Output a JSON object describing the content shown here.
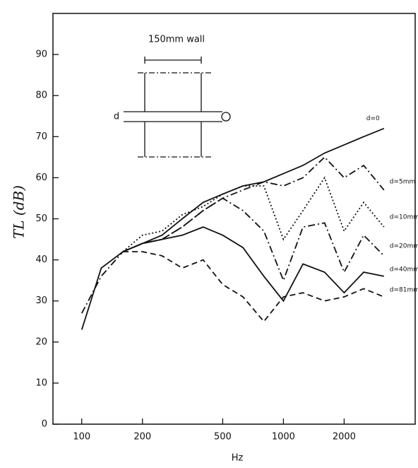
{
  "chart_data": {
    "type": "line",
    "x_label": "Hz",
    "y_label": "TL (dB)",
    "annotations": [
      "150mm wall",
      "d"
    ],
    "x": [
      100,
      125,
      160,
      200,
      250,
      315,
      400,
      500,
      630,
      800,
      1000,
      1250,
      1600,
      2000,
      2500,
      3150
    ],
    "xlim": [
      72,
      4500
    ],
    "xscale": "log",
    "xticks": [
      100,
      200,
      500,
      1000,
      2000
    ],
    "ylim": [
      0,
      100
    ],
    "yticks": [
      0,
      10,
      20,
      30,
      40,
      50,
      60,
      70,
      80,
      90
    ],
    "grid": false,
    "series": [
      {
        "name": "d=0",
        "color": "#111111",
        "style": "solid",
        "values": [
          23,
          38,
          42,
          44,
          46,
          50,
          54,
          56,
          58,
          59,
          61,
          63,
          66,
          68,
          70,
          72
        ]
      },
      {
        "name": "d=5mm",
        "color": "#111111",
        "style": "dashdot",
        "values": [
          27,
          36,
          42,
          44,
          45,
          48,
          52,
          55,
          57,
          59,
          58,
          60,
          65,
          60,
          63,
          57
        ]
      },
      {
        "name": "d=10mm",
        "color": "#111111",
        "style": "dotted",
        "values": [
          null,
          null,
          42,
          46,
          47,
          51,
          53,
          56,
          58,
          58,
          45,
          52,
          60,
          47,
          54,
          48
        ]
      },
      {
        "name": "d=20mm",
        "color": "#111111",
        "style": "dashdot",
        "values": [
          null,
          null,
          42,
          44,
          45,
          48,
          52,
          55,
          52,
          47,
          35,
          48,
          49,
          37,
          46,
          41
        ]
      },
      {
        "name": "d=40mm",
        "color": "#111111",
        "style": "solid",
        "values": [
          null,
          null,
          42,
          44,
          45,
          46,
          48,
          46,
          43,
          36,
          30,
          39,
          37,
          32,
          37,
          36
        ]
      },
      {
        "name": "d=81mm",
        "color": "#111111",
        "style": "dashed",
        "values": [
          null,
          null,
          42,
          42,
          41,
          38,
          40,
          34,
          31,
          25,
          31,
          32,
          30,
          31,
          33,
          31
        ]
      }
    ]
  }
}
